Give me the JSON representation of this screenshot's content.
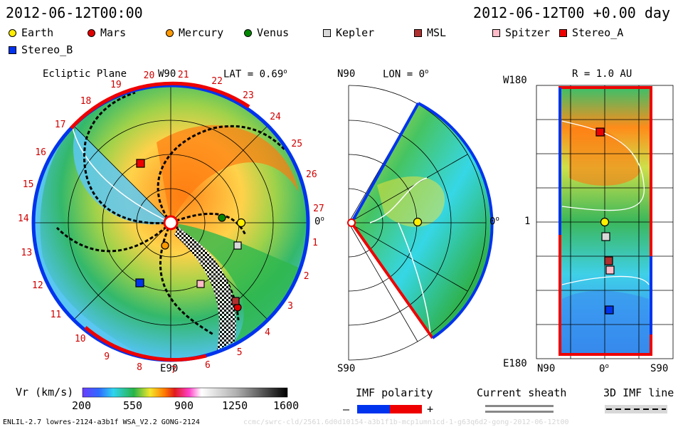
{
  "header": {
    "left_title": "2012-06-12T00:00",
    "right_title": "2012-06-12T00 +0.00 day"
  },
  "legend": [
    {
      "name": "Earth",
      "shape": "circle",
      "color": "#ffee00"
    },
    {
      "name": "Mars",
      "shape": "circle",
      "color": "#e00000"
    },
    {
      "name": "Mercury",
      "shape": "circle",
      "color": "#ff9900"
    },
    {
      "name": "Venus",
      "shape": "circle",
      "color": "#008800"
    },
    {
      "name": "Kepler",
      "shape": "square",
      "color": "#d8d8d8"
    },
    {
      "name": "MSL",
      "shape": "square",
      "color": "#b03030"
    },
    {
      "name": "Spitzer",
      "shape": "square",
      "color": "#ffbcc8"
    },
    {
      "name": "Stereo_A",
      "shape": "square",
      "color": "#ee0000"
    },
    {
      "name": "Stereo_B",
      "shape": "square",
      "color": "#0033ee"
    }
  ],
  "ecliptic": {
    "title": "Ecliptic Plane",
    "top_label": "W90",
    "bottom_label": "E90",
    "right_label": "0",
    "lat_label": "LAT = 0.69",
    "carrington": [
      "1",
      "2",
      "3",
      "4",
      "5",
      "6",
      "7",
      "8",
      "9",
      "10",
      "11",
      "12",
      "13",
      "14",
      "15",
      "16",
      "17",
      "18",
      "19",
      "20",
      "21",
      "22",
      "23",
      "24",
      "25",
      "26",
      "27"
    ]
  },
  "meridional": {
    "top_label": "N90",
    "bottom_label": "S90",
    "lon_label": "LON = 0",
    "right_label": "0"
  },
  "radial": {
    "r_label": "R = 1.0 AU",
    "top_left": "W180",
    "mid_left": "1",
    "bottom_left": "E180",
    "bottom_axis": [
      "N90",
      "0",
      "S90"
    ]
  },
  "colorbar": {
    "label": "Vr (km/s)",
    "ticks": [
      "200",
      "550",
      "900",
      "1250",
      "1600"
    ]
  },
  "imf": {
    "polarity_label": "IMF polarity",
    "minus": "–",
    "plus": "+",
    "sheath_label": "Current sheath",
    "line_label": "3D IMF line"
  },
  "footer": {
    "model_info": "ENLIL-2.7 lowres-2124-a3b1f WSA_V2.2 GONG-2124",
    "faint_info": "ccmc/swrc-cld/2561.6d0d10154-a3b1f1b-mcp1umn1cd-1-g63q6d2-gong-2012-06-12t00"
  }
}
